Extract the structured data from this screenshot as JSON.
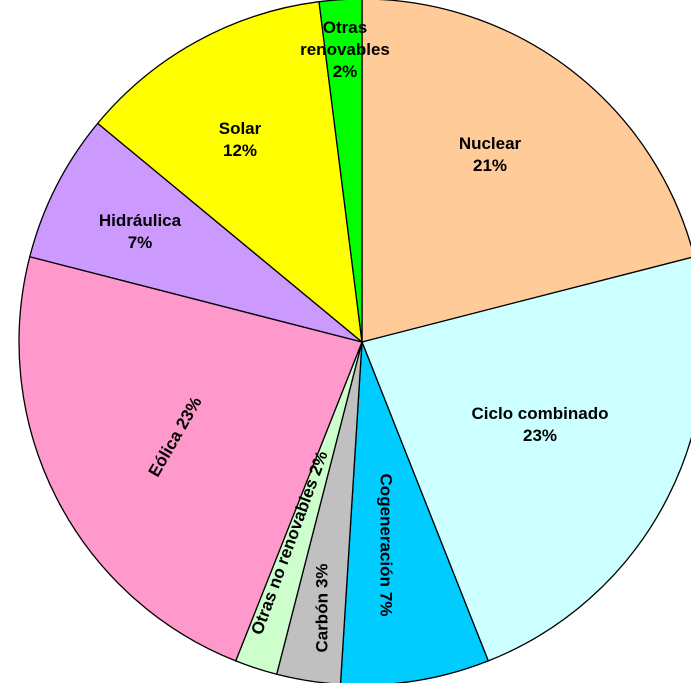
{
  "chart_data": {
    "type": "pie",
    "categories": [
      "Nuclear",
      "Ciclo combinado",
      "Cogeneración",
      "Carbón",
      "Otras no renovables",
      "Eólica",
      "Hidráulica",
      "Solar",
      "Otras renovables"
    ],
    "values": [
      21,
      23,
      7,
      3,
      2,
      23,
      7,
      12,
      2
    ],
    "value_labels": [
      "21%",
      "23%",
      "7%",
      "3%",
      "2%",
      "23%",
      "7%",
      "12%",
      "2%"
    ],
    "colors": [
      "#FFCC99",
      "#CCFFFF",
      "#00CCFF",
      "#C0C0C0",
      "#CCFFCC",
      "#FF99CC",
      "#CC99FF",
      "#FFFF00",
      "#00FF00"
    ]
  }
}
